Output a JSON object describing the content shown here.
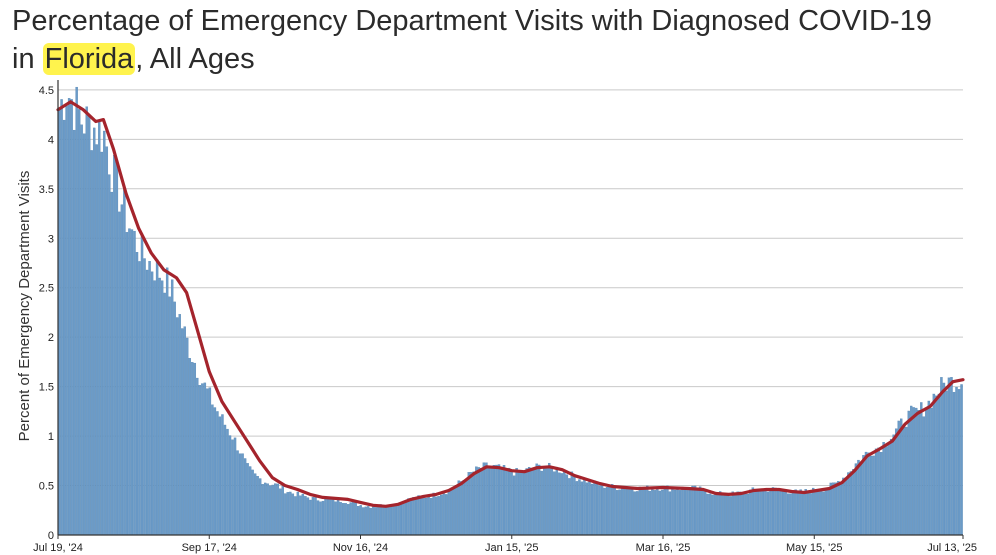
{
  "title": {
    "line1": "Percentage of Emergency Department Visits with Diagnosed COVID-19",
    "line2_prefix": "in ",
    "line2_highlight": "Florida",
    "line2_suffix": ", All Ages"
  },
  "chart_data": {
    "type": "bar",
    "title": "Percentage of Emergency Department Visits with Diagnosed COVID-19 in Florida, All Ages",
    "ylabel": "Percent of Emergency Department Visits",
    "xlabel": "",
    "x_start": "2024-07-19",
    "x_end": "2025-07-13",
    "ylim": [
      0,
      4.6
    ],
    "y_ticks": [
      0,
      0.5,
      1,
      1.5,
      2,
      2.5,
      3,
      3.5,
      4,
      4.5
    ],
    "y_tick_labels": [
      "0",
      "0.5",
      "1",
      "1.5",
      "2",
      "2.5",
      "3",
      "3.5",
      "4",
      "4.5"
    ],
    "x_ticks": [
      {
        "date": "2024-07-19",
        "label": "Jul 19, '24"
      },
      {
        "date": "2024-09-17",
        "label": "Sep 17, '24"
      },
      {
        "date": "2024-11-16",
        "label": "Nov 16, '24"
      },
      {
        "date": "2025-01-15",
        "label": "Jan 15, '25"
      },
      {
        "date": "2025-03-16",
        "label": "Mar 16, '25"
      },
      {
        "date": "2025-05-15",
        "label": "May 15, '25"
      },
      {
        "date": "2025-07-13",
        "label": "Jul 13, '25"
      }
    ],
    "grid": true,
    "colors": {
      "bars": "#6b9bc8",
      "bar_edge": "#4f80ad",
      "trend": "#a4242c",
      "grid": "#c9c9c9"
    },
    "series": [
      {
        "kind": "daily-bars",
        "points": [
          [
            "2024-07-19",
            4.3
          ],
          [
            "2024-07-22",
            4.5
          ],
          [
            "2024-07-25",
            4.35
          ],
          [
            "2024-07-28",
            4.2
          ],
          [
            "2024-07-31",
            4.15
          ],
          [
            "2024-08-03",
            4.1
          ],
          [
            "2024-08-06",
            4.05
          ],
          [
            "2024-08-09",
            3.7
          ],
          [
            "2024-08-12",
            3.45
          ],
          [
            "2024-08-15",
            3.2
          ],
          [
            "2024-08-18",
            3.0
          ],
          [
            "2024-08-21",
            2.85
          ],
          [
            "2024-08-24",
            2.75
          ],
          [
            "2024-08-27",
            2.68
          ],
          [
            "2024-08-30",
            2.6
          ],
          [
            "2024-09-02",
            2.45
          ],
          [
            "2024-09-05",
            2.2
          ],
          [
            "2024-09-08",
            1.95
          ],
          [
            "2024-09-11",
            1.75
          ],
          [
            "2024-09-14",
            1.55
          ],
          [
            "2024-09-17",
            1.4
          ],
          [
            "2024-09-20",
            1.25
          ],
          [
            "2024-09-23",
            1.12
          ],
          [
            "2024-09-26",
            1.0
          ],
          [
            "2024-09-29",
            0.85
          ],
          [
            "2024-10-02",
            0.68
          ],
          [
            "2024-10-05",
            0.6
          ],
          [
            "2024-10-08",
            0.55
          ],
          [
            "2024-10-11",
            0.52
          ],
          [
            "2024-10-14",
            0.5
          ],
          [
            "2024-10-17",
            0.45
          ],
          [
            "2024-10-20",
            0.42
          ],
          [
            "2024-10-23",
            0.4
          ],
          [
            "2024-10-26",
            0.38
          ],
          [
            "2024-10-29",
            0.36
          ],
          [
            "2024-11-01",
            0.36
          ],
          [
            "2024-11-04",
            0.35
          ],
          [
            "2024-11-07",
            0.35
          ],
          [
            "2024-11-10",
            0.34
          ],
          [
            "2024-11-13",
            0.32
          ],
          [
            "2024-11-16",
            0.3
          ],
          [
            "2024-11-19",
            0.29
          ],
          [
            "2024-11-22",
            0.29
          ],
          [
            "2024-11-25",
            0.3
          ],
          [
            "2024-11-28",
            0.3
          ],
          [
            "2024-12-01",
            0.32
          ],
          [
            "2024-12-04",
            0.35
          ],
          [
            "2024-12-07",
            0.37
          ],
          [
            "2024-12-10",
            0.38
          ],
          [
            "2024-12-13",
            0.39
          ],
          [
            "2024-12-16",
            0.41
          ],
          [
            "2024-12-19",
            0.43
          ],
          [
            "2024-12-22",
            0.46
          ],
          [
            "2024-12-25",
            0.52
          ],
          [
            "2024-12-28",
            0.58
          ],
          [
            "2024-12-31",
            0.64
          ],
          [
            "2025-01-03",
            0.68
          ],
          [
            "2025-01-06",
            0.7
          ],
          [
            "2025-01-09",
            0.68
          ],
          [
            "2025-01-12",
            0.66
          ],
          [
            "2025-01-15",
            0.64
          ],
          [
            "2025-01-18",
            0.63
          ],
          [
            "2025-01-21",
            0.65
          ],
          [
            "2025-01-24",
            0.68
          ],
          [
            "2025-01-27",
            0.69
          ],
          [
            "2025-01-30",
            0.68
          ],
          [
            "2025-02-02",
            0.67
          ],
          [
            "2025-02-05",
            0.64
          ],
          [
            "2025-02-08",
            0.6
          ],
          [
            "2025-02-11",
            0.57
          ],
          [
            "2025-02-14",
            0.55
          ],
          [
            "2025-02-17",
            0.52
          ],
          [
            "2025-02-20",
            0.5
          ],
          [
            "2025-02-23",
            0.49
          ],
          [
            "2025-02-26",
            0.48
          ],
          [
            "2025-03-01",
            0.48
          ],
          [
            "2025-03-04",
            0.47
          ],
          [
            "2025-03-07",
            0.47
          ],
          [
            "2025-03-10",
            0.47
          ],
          [
            "2025-03-13",
            0.47
          ],
          [
            "2025-03-16",
            0.48
          ],
          [
            "2025-03-19",
            0.47
          ],
          [
            "2025-03-22",
            0.47
          ],
          [
            "2025-03-25",
            0.47
          ],
          [
            "2025-03-28",
            0.47
          ],
          [
            "2025-03-31",
            0.46
          ],
          [
            "2025-04-03",
            0.44
          ],
          [
            "2025-04-06",
            0.42
          ],
          [
            "2025-04-09",
            0.41
          ],
          [
            "2025-04-12",
            0.41
          ],
          [
            "2025-04-15",
            0.42
          ],
          [
            "2025-04-18",
            0.43
          ],
          [
            "2025-04-21",
            0.45
          ],
          [
            "2025-04-24",
            0.46
          ],
          [
            "2025-04-27",
            0.46
          ],
          [
            "2025-04-30",
            0.46
          ],
          [
            "2025-05-03",
            0.45
          ],
          [
            "2025-05-06",
            0.44
          ],
          [
            "2025-05-09",
            0.43
          ],
          [
            "2025-05-12",
            0.44
          ],
          [
            "2025-05-15",
            0.45
          ],
          [
            "2025-05-18",
            0.46
          ],
          [
            "2025-05-21",
            0.48
          ],
          [
            "2025-05-24",
            0.52
          ],
          [
            "2025-05-27",
            0.58
          ],
          [
            "2025-05-30",
            0.66
          ],
          [
            "2025-06-02",
            0.75
          ],
          [
            "2025-06-05",
            0.82
          ],
          [
            "2025-06-08",
            0.86
          ],
          [
            "2025-06-11",
            0.9
          ],
          [
            "2025-06-14",
            0.97
          ],
          [
            "2025-06-17",
            1.05
          ],
          [
            "2025-06-20",
            1.15
          ],
          [
            "2025-06-23",
            1.22
          ],
          [
            "2025-06-26",
            1.25
          ],
          [
            "2025-06-29",
            1.3
          ],
          [
            "2025-07-02",
            1.4
          ],
          [
            "2025-07-05",
            1.5
          ],
          [
            "2025-07-08",
            1.55
          ],
          [
            "2025-07-11",
            1.55
          ],
          [
            "2025-07-13",
            1.56
          ]
        ]
      },
      {
        "kind": "trend-line",
        "points": [
          [
            "2024-07-19",
            4.3
          ],
          [
            "2024-07-24",
            4.38
          ],
          [
            "2024-07-29",
            4.3
          ],
          [
            "2024-08-03",
            4.18
          ],
          [
            "2024-08-06",
            4.2
          ],
          [
            "2024-08-10",
            3.9
          ],
          [
            "2024-08-15",
            3.45
          ],
          [
            "2024-08-20",
            3.1
          ],
          [
            "2024-08-25",
            2.85
          ],
          [
            "2024-08-30",
            2.68
          ],
          [
            "2024-09-04",
            2.6
          ],
          [
            "2024-09-08",
            2.45
          ],
          [
            "2024-09-12",
            2.1
          ],
          [
            "2024-09-17",
            1.65
          ],
          [
            "2024-09-22",
            1.35
          ],
          [
            "2024-09-27",
            1.15
          ],
          [
            "2024-10-02",
            0.95
          ],
          [
            "2024-10-07",
            0.75
          ],
          [
            "2024-10-12",
            0.58
          ],
          [
            "2024-10-17",
            0.5
          ],
          [
            "2024-10-22",
            0.46
          ],
          [
            "2024-10-27",
            0.41
          ],
          [
            "2024-11-01",
            0.38
          ],
          [
            "2024-11-06",
            0.37
          ],
          [
            "2024-11-11",
            0.36
          ],
          [
            "2024-11-16",
            0.33
          ],
          [
            "2024-11-21",
            0.3
          ],
          [
            "2024-11-26",
            0.29
          ],
          [
            "2024-12-01",
            0.31
          ],
          [
            "2024-12-06",
            0.36
          ],
          [
            "2024-12-11",
            0.39
          ],
          [
            "2024-12-16",
            0.41
          ],
          [
            "2024-12-21",
            0.45
          ],
          [
            "2024-12-26",
            0.52
          ],
          [
            "2024-12-31",
            0.62
          ],
          [
            "2025-01-05",
            0.69
          ],
          [
            "2025-01-10",
            0.68
          ],
          [
            "2025-01-15",
            0.65
          ],
          [
            "2025-01-20",
            0.64
          ],
          [
            "2025-01-25",
            0.68
          ],
          [
            "2025-01-30",
            0.69
          ],
          [
            "2025-02-04",
            0.66
          ],
          [
            "2025-02-09",
            0.6
          ],
          [
            "2025-02-14",
            0.56
          ],
          [
            "2025-02-19",
            0.52
          ],
          [
            "2025-02-24",
            0.49
          ],
          [
            "2025-03-01",
            0.48
          ],
          [
            "2025-03-06",
            0.47
          ],
          [
            "2025-03-16",
            0.48
          ],
          [
            "2025-03-26",
            0.47
          ],
          [
            "2025-04-01",
            0.46
          ],
          [
            "2025-04-06",
            0.42
          ],
          [
            "2025-04-11",
            0.41
          ],
          [
            "2025-04-16",
            0.42
          ],
          [
            "2025-04-21",
            0.45
          ],
          [
            "2025-04-26",
            0.46
          ],
          [
            "2025-05-01",
            0.46
          ],
          [
            "2025-05-06",
            0.44
          ],
          [
            "2025-05-11",
            0.43
          ],
          [
            "2025-05-16",
            0.45
          ],
          [
            "2025-05-21",
            0.47
          ],
          [
            "2025-05-26",
            0.53
          ],
          [
            "2025-05-31",
            0.65
          ],
          [
            "2025-06-05",
            0.8
          ],
          [
            "2025-06-10",
            0.87
          ],
          [
            "2025-06-15",
            0.95
          ],
          [
            "2025-06-20",
            1.12
          ],
          [
            "2025-06-25",
            1.23
          ],
          [
            "2025-06-30",
            1.3
          ],
          [
            "2025-07-05",
            1.45
          ],
          [
            "2025-07-09",
            1.55
          ],
          [
            "2025-07-13",
            1.57
          ]
        ]
      }
    ]
  }
}
